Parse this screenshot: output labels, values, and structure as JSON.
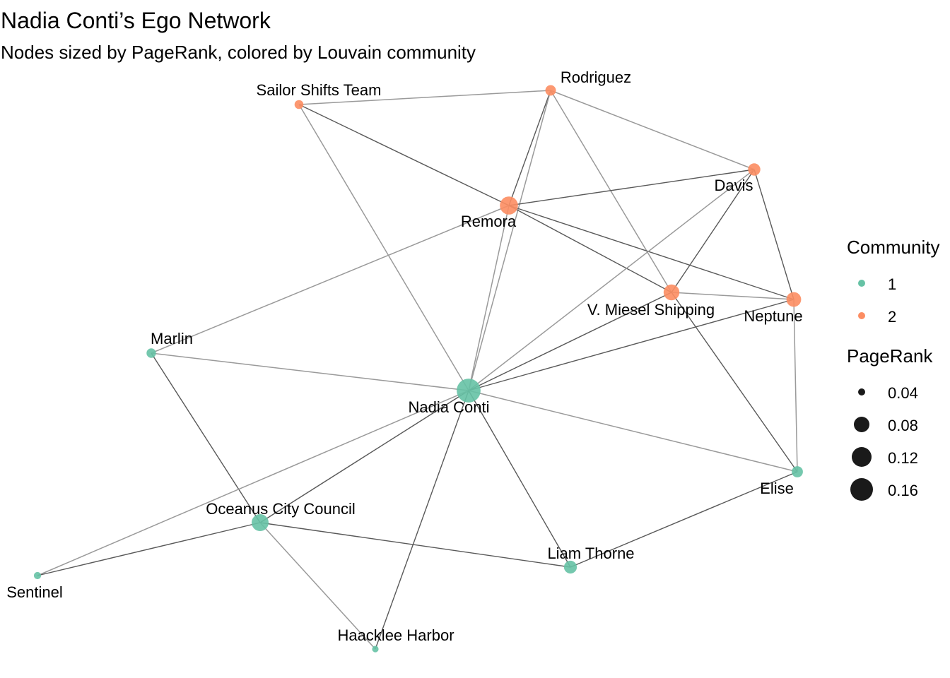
{
  "title": "Nadia Conti’s Ego Network",
  "subtitle": "Nodes sized by PageRank, colored by Louvain community",
  "colors": {
    "community_1": "#66c2a5",
    "community_2": "#fc8d62",
    "edge_dark": "#595959",
    "edge_light": "#9a9a9a",
    "legend_size_marker": "#1a1a1a"
  },
  "legend": {
    "community_title": "Community",
    "community_items": [
      {
        "label": "1",
        "community": 1
      },
      {
        "label": "2",
        "community": 2
      }
    ],
    "pagerank_title": "PageRank",
    "pagerank_items": [
      {
        "label": "0.04",
        "value": 0.04
      },
      {
        "label": "0.08",
        "value": 0.08
      },
      {
        "label": "0.12",
        "value": 0.12
      },
      {
        "label": "0.16",
        "value": 0.16
      }
    ]
  },
  "nodes": [
    {
      "id": "nadia",
      "label": "Nadia Conti",
      "community": 1,
      "pagerank": 0.17
    },
    {
      "id": "remora",
      "label": "Remora",
      "community": 2,
      "pagerank": 0.12
    },
    {
      "id": "miesel",
      "label": "V. Miesel Shipping",
      "community": 2,
      "pagerank": 0.1
    },
    {
      "id": "neptune",
      "label": "Neptune",
      "community": 2,
      "pagerank": 0.09
    },
    {
      "id": "davis",
      "label": "Davis",
      "community": 2,
      "pagerank": 0.07
    },
    {
      "id": "rodriguez",
      "label": "Rodriguez",
      "community": 2,
      "pagerank": 0.055
    },
    {
      "id": "sailor",
      "label": "Sailor Shifts Team",
      "community": 2,
      "pagerank": 0.04
    },
    {
      "id": "marlin",
      "label": "Marlin",
      "community": 1,
      "pagerank": 0.045
    },
    {
      "id": "occ",
      "label": "Oceanus City Council",
      "community": 1,
      "pagerank": 0.11
    },
    {
      "id": "liam",
      "label": "Liam Thorne",
      "community": 1,
      "pagerank": 0.075
    },
    {
      "id": "elise",
      "label": "Elise",
      "community": 1,
      "pagerank": 0.06
    },
    {
      "id": "sentinel",
      "label": "Sentinel",
      "community": 1,
      "pagerank": 0.025
    },
    {
      "id": "haacklee",
      "label": "Haacklee Harbor",
      "community": 1,
      "pagerank": 0.02
    }
  ],
  "edges": [
    {
      "source": "sailor",
      "target": "rodriguez",
      "weight": "light"
    },
    {
      "source": "sailor",
      "target": "remora",
      "weight": "dark"
    },
    {
      "source": "sailor",
      "target": "nadia",
      "weight": "light"
    },
    {
      "source": "rodriguez",
      "target": "davis",
      "weight": "light"
    },
    {
      "source": "rodriguez",
      "target": "remora",
      "weight": "dark"
    },
    {
      "source": "rodriguez",
      "target": "nadia",
      "weight": "light"
    },
    {
      "source": "rodriguez",
      "target": "miesel",
      "weight": "light"
    },
    {
      "source": "remora",
      "target": "davis",
      "weight": "dark"
    },
    {
      "source": "remora",
      "target": "miesel",
      "weight": "dark"
    },
    {
      "source": "remora",
      "target": "neptune",
      "weight": "dark"
    },
    {
      "source": "remora",
      "target": "nadia",
      "weight": "light"
    },
    {
      "source": "remora",
      "target": "marlin",
      "weight": "light"
    },
    {
      "source": "davis",
      "target": "neptune",
      "weight": "dark"
    },
    {
      "source": "davis",
      "target": "miesel",
      "weight": "dark"
    },
    {
      "source": "davis",
      "target": "nadia",
      "weight": "light"
    },
    {
      "source": "miesel",
      "target": "neptune",
      "weight": "light"
    },
    {
      "source": "miesel",
      "target": "nadia",
      "weight": "dark"
    },
    {
      "source": "miesel",
      "target": "elise",
      "weight": "dark"
    },
    {
      "source": "neptune",
      "target": "nadia",
      "weight": "dark"
    },
    {
      "source": "neptune",
      "target": "elise",
      "weight": "light"
    },
    {
      "source": "marlin",
      "target": "nadia",
      "weight": "light"
    },
    {
      "source": "marlin",
      "target": "occ",
      "weight": "dark"
    },
    {
      "source": "nadia",
      "target": "elise",
      "weight": "light"
    },
    {
      "source": "nadia",
      "target": "liam",
      "weight": "dark"
    },
    {
      "source": "nadia",
      "target": "occ",
      "weight": "dark"
    },
    {
      "source": "nadia",
      "target": "sentinel",
      "weight": "light"
    },
    {
      "source": "nadia",
      "target": "haacklee",
      "weight": "dark"
    },
    {
      "source": "occ",
      "target": "sentinel",
      "weight": "dark"
    },
    {
      "source": "occ",
      "target": "liam",
      "weight": "dark"
    },
    {
      "source": "occ",
      "target": "haacklee",
      "weight": "light"
    },
    {
      "source": "liam",
      "target": "elise",
      "weight": "dark"
    }
  ]
}
